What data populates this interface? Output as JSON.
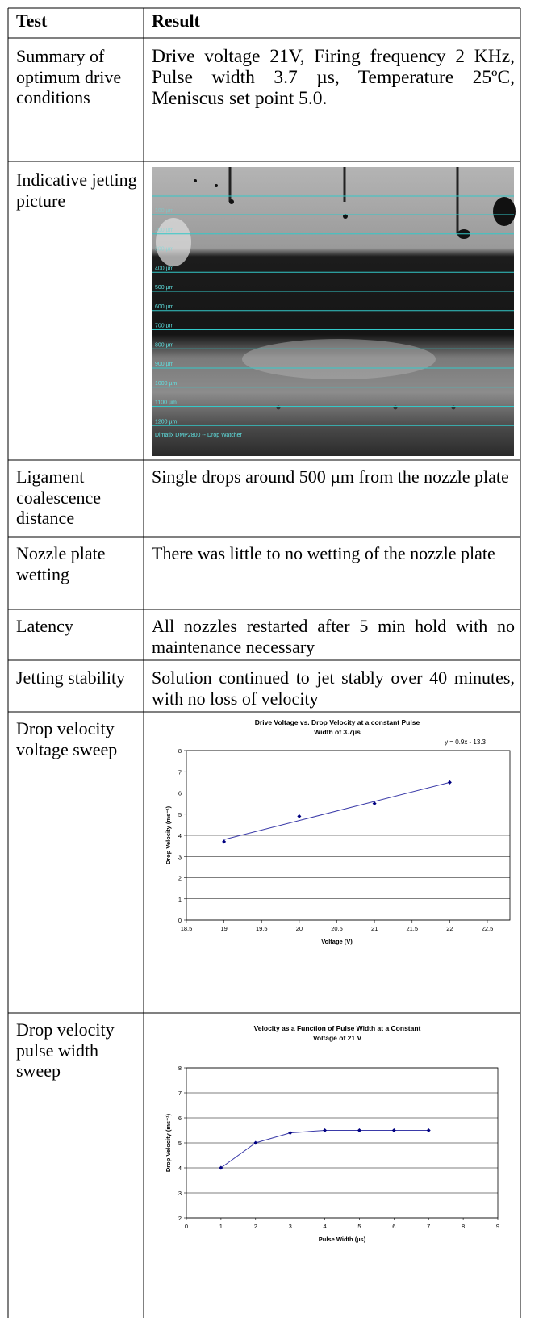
{
  "table": {
    "header": [
      "Test",
      "Result"
    ],
    "rows": [
      {
        "test": "Summary of optimum drive conditions",
        "result": "Drive voltage 21V, Firing frequency 2 KHz, Pulse width 3.7 µs, Temperature 25ºC, Meniscus set point 5.0."
      },
      {
        "test": "Indicative jetting picture",
        "image": {
          "scale_labels": [
            "100 µm",
            "200 µm",
            "300 µm",
            "400 µm",
            "500 µm",
            "600 µm",
            "700 µm",
            "800 µm",
            "900 µm",
            "1000 µm",
            "1100 µm",
            "1200 µm"
          ],
          "caption": "Dimatix DMP2800 -- Drop Watcher"
        }
      },
      {
        "test": "Ligament coalescence distance",
        "result": "Single drops around 500 µm from the nozzle plate"
      },
      {
        "test": "Nozzle plate wetting",
        "result": "There was little to no wetting of the nozzle plate"
      },
      {
        "test": "Latency",
        "result": "All nozzles restarted after 5 min hold with no maintenance necessary"
      },
      {
        "test": "Jetting stability",
        "result": "Solution continued to jet stably over 40 minutes, with no loss of velocity"
      },
      {
        "test": "Drop velocity voltage sweep",
        "chart": {
          "type": "scatter",
          "title": [
            "Drive Voltage vs. Drop Velocity at a constant Pulse",
            "Width of 3.7µs"
          ],
          "xlabel": "Voltage (V)",
          "ylabel": "Drop Velocity (ms⁻¹)",
          "x": [
            19,
            20,
            21,
            22
          ],
          "values": [
            3.7,
            4.9,
            5.5,
            6.5
          ],
          "color": "#000080",
          "trendline": {
            "label": "y = 0.9x - 13.3",
            "slope": 0.9,
            "intercept": -13.3
          },
          "xlim": [
            18.5,
            22.5
          ],
          "xticks": [
            18.5,
            19,
            19.5,
            20,
            20.5,
            21,
            21.5,
            22,
            22.5
          ],
          "ylim": [
            0,
            8
          ],
          "yticks": [
            0,
            1,
            2,
            3,
            4,
            5,
            6,
            7,
            8
          ],
          "grid": true
        }
      },
      {
        "test": "Drop velocity pulse width sweep",
        "chart": {
          "type": "line",
          "title": [
            "Velocity as a Function of Pulse Width at a Constant",
            "Voltage of 21 V"
          ],
          "xlabel": "Pulse Width (µs)",
          "ylabel": "Drop Velocity (ms⁻¹)",
          "x": [
            1,
            2,
            3,
            4,
            5,
            6,
            7
          ],
          "values": [
            4,
            5,
            5.4,
            5.5,
            5.5,
            5.5,
            5.5
          ],
          "color": "#000080",
          "xlim": [
            0,
            9
          ],
          "xticks": [
            0,
            1,
            2,
            3,
            4,
            5,
            6,
            7,
            8,
            9
          ],
          "ylim": [
            2,
            8
          ],
          "yticks": [
            2,
            3,
            4,
            5,
            6,
            7,
            8
          ],
          "grid": true
        }
      }
    ]
  }
}
